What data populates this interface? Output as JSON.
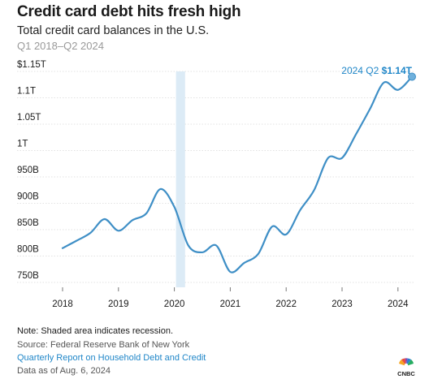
{
  "header": {
    "title": "Credit card debt hits fresh high",
    "subtitle": "Total credit card balances in the U.S.",
    "period": "Q1 2018–Q2 2024"
  },
  "footer": {
    "note": "Note: Shaded area indicates recession.",
    "source": "Source: Federal Reserve Bank of New York",
    "link": "Quarterly Report on Household Debt and Credit",
    "as_of": "Data as of Aug. 6, 2024",
    "logo_text": "CNBC"
  },
  "colors": {
    "line": "#3f8fc6",
    "recession": "#dcebf6",
    "gridline": "#d9d9d9",
    "axis_text": "#1a1a1a",
    "annotation": "#1f86c8"
  },
  "chart_data": {
    "type": "line",
    "title": "Credit card debt hits fresh high",
    "subtitle": "Total credit card balances in the U.S.",
    "xlabel": "",
    "ylabel": "",
    "x_ticks": [
      "2018",
      "2019",
      "2020",
      "2021",
      "2022",
      "2023",
      "2024"
    ],
    "y_ticks": [
      "750B",
      "800B",
      "850B",
      "900B",
      "950B",
      "1T",
      "1.05T",
      "1.1T",
      "$1.15T"
    ],
    "ylim": [
      750,
      1150
    ],
    "y_unit": "billions of dollars",
    "grid": "horizontal",
    "recession_shading": [
      "Q1 2020",
      "Q2 2020"
    ],
    "annotation": {
      "prefix": "2024 Q2",
      "value": "$1.14T"
    },
    "series": [
      {
        "x": [
          "Q1 2018",
          "Q2 2018",
          "Q3 2018",
          "Q4 2018",
          "Q1 2019",
          "Q2 2019",
          "Q3 2019",
          "Q4 2019",
          "Q1 2020",
          "Q2 2020",
          "Q3 2020",
          "Q4 2020",
          "Q1 2021",
          "Q2 2021",
          "Q3 2021",
          "Q4 2021",
          "Q1 2022",
          "Q2 2022",
          "Q3 2022",
          "Q4 2022",
          "Q1 2023",
          "Q2 2023",
          "Q3 2023",
          "Q4 2023",
          "Q1 2024",
          "Q2 2024"
        ],
        "values": [
          815,
          829,
          844,
          870,
          848,
          868,
          881,
          927,
          893,
          820,
          807,
          820,
          770,
          787,
          804,
          856,
          841,
          887,
          925,
          986,
          986,
          1031,
          1079,
          1129,
          1115,
          1140
        ]
      }
    ]
  }
}
